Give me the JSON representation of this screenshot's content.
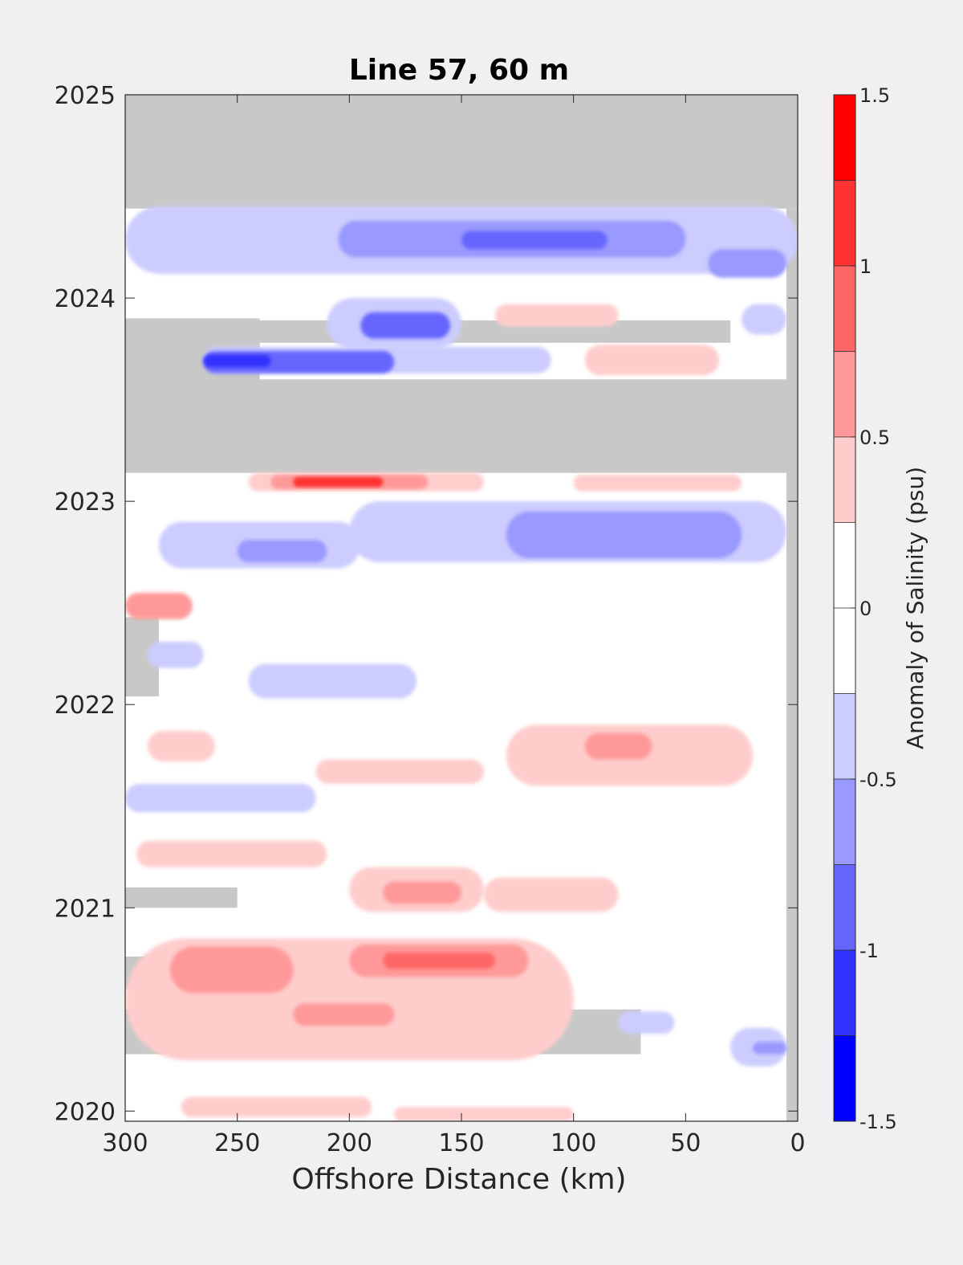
{
  "chart_data": {
    "type": "heatmap",
    "title": "Line 57, 60 m",
    "xlabel": "Offshore Distance (km)",
    "ylabel": "",
    "xlim": [
      300,
      0
    ],
    "ylim": [
      2019.95,
      2025
    ],
    "x_ticks": [
      300,
      250,
      200,
      150,
      100,
      50,
      0
    ],
    "x_tick_labels": [
      "300",
      "250",
      "200",
      "150",
      "100",
      "50",
      "0"
    ],
    "y_ticks": [
      2020,
      2021,
      2022,
      2023,
      2024,
      2025
    ],
    "y_tick_labels": [
      "2020",
      "2021",
      "2022",
      "2023",
      "2024",
      "2025"
    ],
    "colorbar": {
      "label": "Anomaly of Salinity (psu)",
      "range": [
        -1.5,
        1.5
      ],
      "ticks": [
        -1.5,
        -1,
        -0.5,
        0,
        0.5,
        1,
        1.5
      ],
      "tick_labels": [
        "-1.5",
        "-1",
        "-0.5",
        "0",
        "0.5",
        "1",
        "1.5"
      ],
      "levels": [
        -1.5,
        -1.25,
        -1,
        -0.75,
        -0.5,
        -0.25,
        0,
        0.25,
        0.5,
        0.75,
        1,
        1.25,
        1.5
      ],
      "colors": [
        "#0000ff",
        "#3333ff",
        "#6666ff",
        "#9999ff",
        "#ccccff",
        "#ffffff",
        "#ffffff",
        "#ffcccc",
        "#ff9999",
        "#ff6666",
        "#ff3333",
        "#ff0000"
      ]
    },
    "missing_color": "#c8c8c8",
    "features": [
      {
        "label": "gap",
        "kind": "missing",
        "value": null,
        "x_range": [
          300,
          0
        ],
        "y_range": [
          2024.44,
          2025
        ]
      },
      {
        "label": "gap",
        "kind": "missing",
        "value": null,
        "x_range": [
          300,
          0
        ],
        "y_range": [
          2023.14,
          2023.6
        ]
      },
      {
        "label": "gap",
        "kind": "missing",
        "value": null,
        "x_range": [
          300,
          30
        ],
        "y_range": [
          2023.78,
          2023.89
        ]
      },
      {
        "label": "gap",
        "kind": "missing",
        "value": null,
        "x_range": [
          300,
          240
        ],
        "y_range": [
          2023.55,
          2023.9
        ]
      },
      {
        "label": "gap",
        "kind": "missing",
        "value": null,
        "x_range": [
          300,
          285
        ],
        "y_range": [
          2022.04,
          2022.43
        ]
      },
      {
        "label": "gap",
        "kind": "missing",
        "value": null,
        "x_range": [
          300,
          250
        ],
        "y_range": [
          2021,
          2021.1
        ]
      },
      {
        "label": "gap",
        "kind": "missing",
        "value": null,
        "x_range": [
          300,
          240
        ],
        "y_range": [
          2020.6,
          2020.76
        ]
      },
      {
        "label": "gap",
        "kind": "missing",
        "value": null,
        "x_range": [
          300,
          70
        ],
        "y_range": [
          2020.28,
          2020.5
        ]
      },
      {
        "label": "gap",
        "kind": "missing",
        "value": null,
        "x_range": [
          5,
          0
        ],
        "y_range": [
          2019.95,
          2024.44
        ]
      },
      {
        "label": "anomaly",
        "kind": "value",
        "value": -0.3,
        "x_range": [
          300,
          0
        ],
        "y_range": [
          2024.12,
          2024.45
        ]
      },
      {
        "label": "anomaly",
        "kind": "value",
        "value": -0.6,
        "x_range": [
          205,
          50
        ],
        "y_range": [
          2024.2,
          2024.38
        ]
      },
      {
        "label": "anomaly",
        "kind": "value",
        "value": -0.9,
        "x_range": [
          150,
          85
        ],
        "y_range": [
          2024.24,
          2024.33
        ]
      },
      {
        "label": "anomaly",
        "kind": "value",
        "value": -0.5,
        "x_range": [
          40,
          5
        ],
        "y_range": [
          2024.1,
          2024.24
        ]
      },
      {
        "label": "anomaly",
        "kind": "value",
        "value": -0.3,
        "x_range": [
          25,
          5
        ],
        "y_range": [
          2023.82,
          2023.97
        ]
      },
      {
        "label": "anomaly",
        "kind": "value",
        "value": -0.4,
        "x_range": [
          210,
          150
        ],
        "y_range": [
          2023.75,
          2024.0
        ]
      },
      {
        "label": "anomaly",
        "kind": "value",
        "value": -0.75,
        "x_range": [
          195,
          155
        ],
        "y_range": [
          2023.8,
          2023.93
        ]
      },
      {
        "label": "anomaly",
        "kind": "value",
        "value": 0.3,
        "x_range": [
          135,
          80
        ],
        "y_range": [
          2023.86,
          2023.97
        ]
      },
      {
        "label": "anomaly",
        "kind": "value",
        "value": 0.3,
        "x_range": [
          95,
          35
        ],
        "y_range": [
          2023.62,
          2023.77
        ]
      },
      {
        "label": "anomaly",
        "kind": "value",
        "value": -0.4,
        "x_range": [
          265,
          110
        ],
        "y_range": [
          2023.63,
          2023.76
        ]
      },
      {
        "label": "anomaly",
        "kind": "value",
        "value": -0.75,
        "x_range": [
          265,
          180
        ],
        "y_range": [
          2023.63,
          2023.74
        ]
      },
      {
        "label": "anomaly",
        "kind": "value",
        "value": -1.0,
        "x_range": [
          265,
          235
        ],
        "y_range": [
          2023.66,
          2023.72
        ]
      },
      {
        "label": "anomaly",
        "kind": "value",
        "value": 0.3,
        "x_range": [
          245,
          140
        ],
        "y_range": [
          2023.05,
          2023.14
        ]
      },
      {
        "label": "anomaly",
        "kind": "value",
        "value": 0.6,
        "x_range": [
          235,
          165
        ],
        "y_range": [
          2023.06,
          2023.13
        ]
      },
      {
        "label": "anomaly",
        "kind": "value",
        "value": 1.1,
        "x_range": [
          225,
          185
        ],
        "y_range": [
          2023.07,
          2023.12
        ]
      },
      {
        "label": "anomaly",
        "kind": "value",
        "value": 0.3,
        "x_range": [
          100,
          25
        ],
        "y_range": [
          2023.05,
          2023.13
        ]
      },
      {
        "label": "anomaly",
        "kind": "value",
        "value": -0.3,
        "x_range": [
          200,
          5
        ],
        "y_range": [
          2022.7,
          2023.0
        ]
      },
      {
        "label": "anomaly",
        "kind": "value",
        "value": -0.6,
        "x_range": [
          130,
          25
        ],
        "y_range": [
          2022.72,
          2022.95
        ]
      },
      {
        "label": "anomaly",
        "kind": "value",
        "value": -0.3,
        "x_range": [
          285,
          195
        ],
        "y_range": [
          2022.67,
          2022.9
        ]
      },
      {
        "label": "anomaly",
        "kind": "value",
        "value": -0.6,
        "x_range": [
          250,
          210
        ],
        "y_range": [
          2022.7,
          2022.81
        ]
      },
      {
        "label": "anomaly",
        "kind": "value",
        "value": 0.6,
        "x_range": [
          300,
          270
        ],
        "y_range": [
          2022.42,
          2022.55
        ]
      },
      {
        "label": "anomaly",
        "kind": "value",
        "value": -0.3,
        "x_range": [
          290,
          265
        ],
        "y_range": [
          2022.18,
          2022.31
        ]
      },
      {
        "label": "anomaly",
        "kind": "value",
        "value": -0.3,
        "x_range": [
          245,
          170
        ],
        "y_range": [
          2022.03,
          2022.2
        ]
      },
      {
        "label": "anomaly",
        "kind": "value",
        "value": 0.3,
        "x_range": [
          290,
          260
        ],
        "y_range": [
          2021.72,
          2021.87
        ]
      },
      {
        "label": "anomaly",
        "kind": "value",
        "value": 0.3,
        "x_range": [
          215,
          140
        ],
        "y_range": [
          2021.61,
          2021.73
        ]
      },
      {
        "label": "anomaly",
        "kind": "value",
        "value": 0.3,
        "x_range": [
          130,
          20
        ],
        "y_range": [
          2021.6,
          2021.9
        ]
      },
      {
        "label": "anomaly",
        "kind": "value",
        "value": 0.6,
        "x_range": [
          95,
          65
        ],
        "y_range": [
          2021.73,
          2021.86
        ]
      },
      {
        "label": "anomaly",
        "kind": "value",
        "value": -0.3,
        "x_range": [
          300,
          215
        ],
        "y_range": [
          2021.47,
          2021.61
        ]
      },
      {
        "label": "anomaly",
        "kind": "value",
        "value": 0.3,
        "x_range": [
          295,
          210
        ],
        "y_range": [
          2021.2,
          2021.33
        ]
      },
      {
        "label": "anomaly",
        "kind": "value",
        "value": 0.3,
        "x_range": [
          200,
          140
        ],
        "y_range": [
          2020.98,
          2021.2
        ]
      },
      {
        "label": "anomaly",
        "kind": "value",
        "value": 0.6,
        "x_range": [
          185,
          150
        ],
        "y_range": [
          2021.02,
          2021.13
        ]
      },
      {
        "label": "anomaly",
        "kind": "value",
        "value": 0.3,
        "x_range": [
          140,
          80
        ],
        "y_range": [
          2020.98,
          2021.15
        ]
      },
      {
        "label": "anomaly",
        "kind": "value",
        "value": 0.3,
        "x_range": [
          300,
          100
        ],
        "y_range": [
          2020.25,
          2020.85
        ]
      },
      {
        "label": "anomaly",
        "kind": "value",
        "value": 0.6,
        "x_range": [
          200,
          120
        ],
        "y_range": [
          2020.66,
          2020.82
        ]
      },
      {
        "label": "anomaly",
        "kind": "value",
        "value": 1.0,
        "x_range": [
          185,
          135
        ],
        "y_range": [
          2020.7,
          2020.78
        ]
      },
      {
        "label": "anomaly",
        "kind": "value",
        "value": 0.7,
        "x_range": [
          280,
          225
        ],
        "y_range": [
          2020.58,
          2020.81
        ]
      },
      {
        "label": "anomaly",
        "kind": "value",
        "value": 0.7,
        "x_range": [
          225,
          180
        ],
        "y_range": [
          2020.42,
          2020.53
        ]
      },
      {
        "label": "anomaly",
        "kind": "value",
        "value": -0.3,
        "x_range": [
          80,
          55
        ],
        "y_range": [
          2020.38,
          2020.49
        ]
      },
      {
        "label": "anomaly",
        "kind": "value",
        "value": -0.3,
        "x_range": [
          30,
          5
        ],
        "y_range": [
          2020.22,
          2020.41
        ]
      },
      {
        "label": "anomaly",
        "kind": "value",
        "value": -0.6,
        "x_range": [
          20,
          5
        ],
        "y_range": [
          2020.28,
          2020.34
        ]
      },
      {
        "label": "anomaly",
        "kind": "value",
        "value": 0.3,
        "x_range": [
          275,
          190
        ],
        "y_range": [
          2019.97,
          2020.07
        ]
      },
      {
        "label": "anomaly",
        "kind": "value",
        "value": 0.3,
        "x_range": [
          180,
          100
        ],
        "y_range": [
          2019.95,
          2020.02
        ]
      }
    ]
  }
}
